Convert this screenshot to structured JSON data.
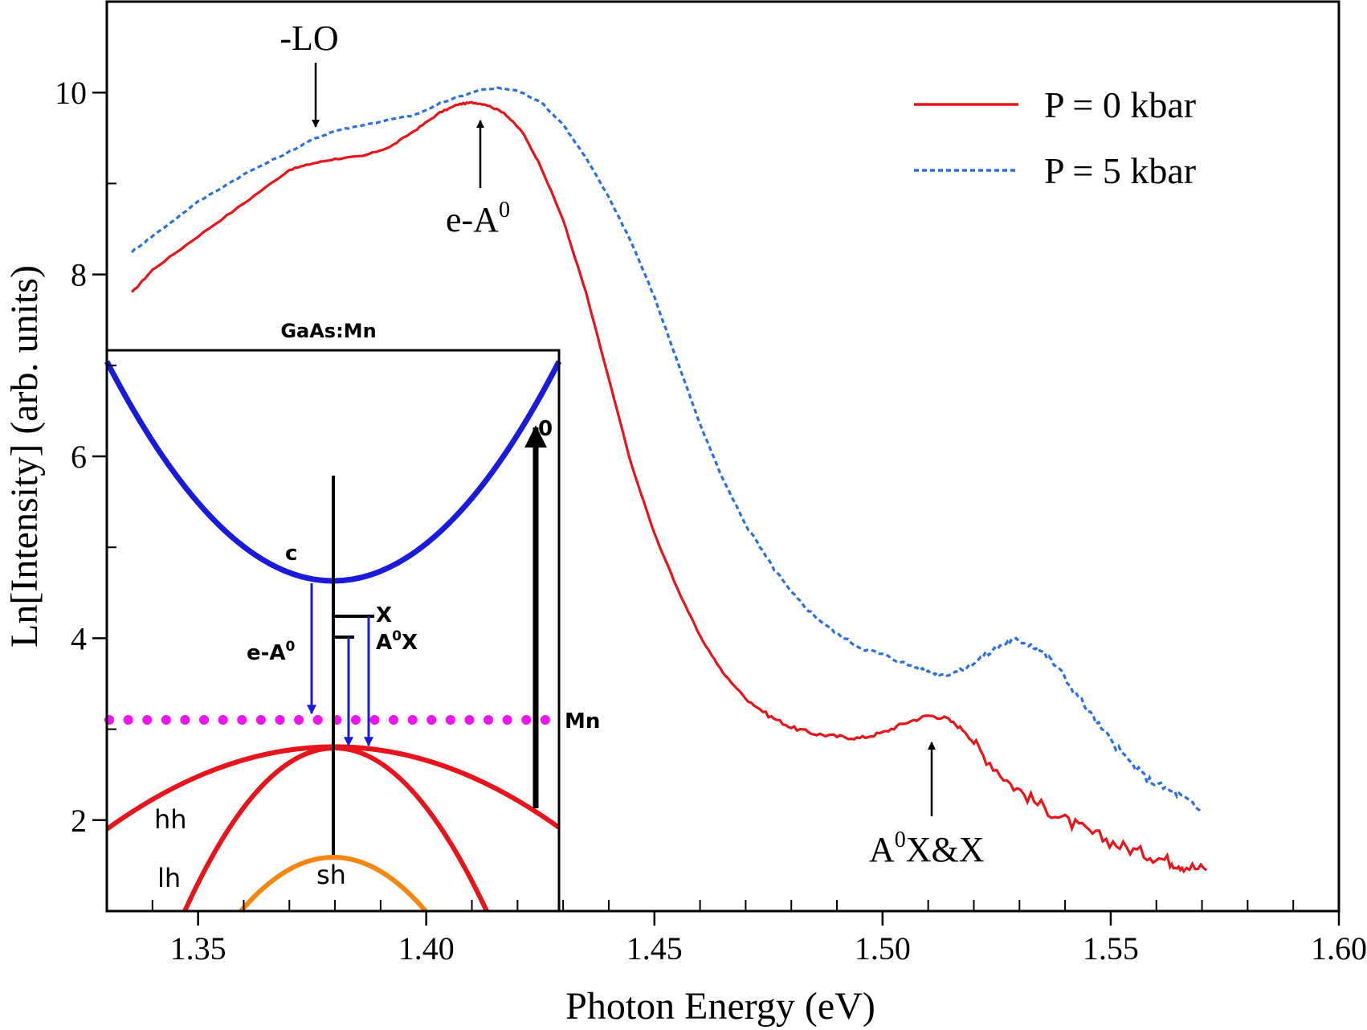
{
  "chart_data": {
    "type": "line",
    "title": "",
    "xlabel": "Photon Energy (eV)",
    "ylabel": "Ln[Intensity] (arb. units)",
    "xlim": [
      1.33,
      1.6
    ],
    "ylim": [
      1.0,
      11.0
    ],
    "x_ticks": [
      {
        "value": 1.35,
        "label": "1.35"
      },
      {
        "value": 1.4,
        "label": "1.40"
      },
      {
        "value": 1.45,
        "label": "1.45"
      },
      {
        "value": 1.5,
        "label": "1.50"
      },
      {
        "value": 1.55,
        "label": "1.55"
      },
      {
        "value": 1.6,
        "label": "1.60"
      }
    ],
    "y_ticks": [
      {
        "value": 2,
        "label": "2"
      },
      {
        "value": 4,
        "label": "4"
      },
      {
        "value": 6,
        "label": "6"
      },
      {
        "value": 8,
        "label": "8"
      },
      {
        "value": 10,
        "label": "10"
      }
    ],
    "grid": false,
    "legend": {
      "placement": "top-right"
    },
    "series": [
      {
        "name": "P = 0 kbar",
        "color": "#e8141c",
        "style": "solid",
        "points": [
          [
            1.3355,
            7.8
          ],
          [
            1.34,
            8.05
          ],
          [
            1.35,
            8.42
          ],
          [
            1.36,
            8.78
          ],
          [
            1.37,
            9.15
          ],
          [
            1.375,
            9.22
          ],
          [
            1.38,
            9.27
          ],
          [
            1.386,
            9.3
          ],
          [
            1.392,
            9.4
          ],
          [
            1.398,
            9.6
          ],
          [
            1.403,
            9.78
          ],
          [
            1.407,
            9.87
          ],
          [
            1.41,
            9.89
          ],
          [
            1.413,
            9.87
          ],
          [
            1.417,
            9.78
          ],
          [
            1.421,
            9.57
          ],
          [
            1.425,
            9.2
          ],
          [
            1.43,
            8.6
          ],
          [
            1.435,
            7.8
          ],
          [
            1.44,
            6.85
          ],
          [
            1.445,
            5.9
          ],
          [
            1.45,
            5.15
          ],
          [
            1.455,
            4.55
          ],
          [
            1.46,
            4.02
          ],
          [
            1.465,
            3.62
          ],
          [
            1.47,
            3.34
          ],
          [
            1.475,
            3.15
          ],
          [
            1.48,
            3.02
          ],
          [
            1.485,
            2.95
          ],
          [
            1.49,
            2.92
          ],
          [
            1.495,
            2.9
          ],
          [
            1.5,
            2.96
          ],
          [
            1.505,
            3.07
          ],
          [
            1.51,
            3.15
          ],
          [
            1.514,
            3.12
          ],
          [
            1.518,
            2.98
          ],
          [
            1.522,
            2.72
          ],
          [
            1.528,
            2.4
          ],
          [
            1.534,
            2.18
          ],
          [
            1.54,
            2.0
          ],
          [
            1.546,
            1.85
          ],
          [
            1.552,
            1.72
          ],
          [
            1.558,
            1.62
          ],
          [
            1.563,
            1.55
          ],
          [
            1.566,
            1.5
          ],
          [
            1.571,
            1.45
          ]
        ]
      },
      {
        "name": "P = 5 kbar",
        "color": "#2a6fdb",
        "style": "dashed",
        "points": [
          [
            1.3355,
            8.25
          ],
          [
            1.34,
            8.42
          ],
          [
            1.35,
            8.8
          ],
          [
            1.36,
            9.1
          ],
          [
            1.37,
            9.35
          ],
          [
            1.375,
            9.48
          ],
          [
            1.38,
            9.58
          ],
          [
            1.386,
            9.64
          ],
          [
            1.392,
            9.7
          ],
          [
            1.398,
            9.76
          ],
          [
            1.403,
            9.88
          ],
          [
            1.408,
            9.97
          ],
          [
            1.412,
            10.03
          ],
          [
            1.416,
            10.05
          ],
          [
            1.42,
            10.02
          ],
          [
            1.425,
            9.9
          ],
          [
            1.43,
            9.65
          ],
          [
            1.435,
            9.28
          ],
          [
            1.44,
            8.85
          ],
          [
            1.445,
            8.35
          ],
          [
            1.45,
            7.75
          ],
          [
            1.455,
            7.05
          ],
          [
            1.46,
            6.35
          ],
          [
            1.465,
            5.75
          ],
          [
            1.47,
            5.25
          ],
          [
            1.475,
            4.85
          ],
          [
            1.48,
            4.5
          ],
          [
            1.485,
            4.25
          ],
          [
            1.49,
            4.05
          ],
          [
            1.495,
            3.9
          ],
          [
            1.5,
            3.82
          ],
          [
            1.505,
            3.72
          ],
          [
            1.51,
            3.63
          ],
          [
            1.514,
            3.6
          ],
          [
            1.518,
            3.66
          ],
          [
            1.522,
            3.8
          ],
          [
            1.527,
            3.95
          ],
          [
            1.53,
            3.98
          ],
          [
            1.534,
            3.9
          ],
          [
            1.538,
            3.7
          ],
          [
            1.543,
            3.35
          ],
          [
            1.548,
            3.0
          ],
          [
            1.553,
            2.7
          ],
          [
            1.558,
            2.45
          ],
          [
            1.562,
            2.35
          ],
          [
            1.566,
            2.25
          ],
          [
            1.57,
            2.08
          ]
        ]
      }
    ],
    "annotations": [
      {
        "text": "-LO",
        "x": 1.374,
        "arrow": "down"
      },
      {
        "text": "e-A",
        "sup": "0",
        "x": 1.41,
        "arrow": "up"
      },
      {
        "text": "A",
        "sup": "0",
        "text_after": "X&X",
        "x": 1.512,
        "arrow": "up"
      }
    ]
  },
  "inset": {
    "title": "GaAs:Mn",
    "labels": {
      "c": "c",
      "x": "X",
      "a0x_main": "A",
      "a0x_sup": "0",
      "a0x_after": "X",
      "ea0_main": "e-A",
      "ea0_sup": "0",
      "mn": "Mn",
      "zero": "0",
      "hh": "hh",
      "lh": "lh",
      "sh": "sh"
    },
    "colors": {
      "conduction": "#1a1adb",
      "heavy_light_hole": "#e8141c",
      "split_off": "#f5870f",
      "mn_level": "#ee14ee",
      "transition_arrows": "#1a1adb",
      "excitation_arrow": "#000000"
    }
  }
}
